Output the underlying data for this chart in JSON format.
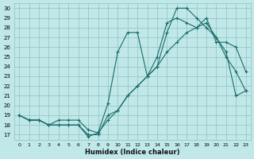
{
  "xlabel": "Humidex (Indice chaleur)",
  "bg_color": "#c0e8e8",
  "grid_color": "#90c0c0",
  "line_color": "#1a6b6b",
  "xlim": [
    -0.5,
    23.5
  ],
  "ylim": [
    16.5,
    30.5
  ],
  "xticks": [
    0,
    1,
    2,
    3,
    4,
    5,
    6,
    7,
    8,
    9,
    10,
    11,
    12,
    13,
    14,
    15,
    16,
    17,
    18,
    19,
    20,
    21,
    22,
    23
  ],
  "yticks": [
    17,
    18,
    19,
    20,
    21,
    22,
    23,
    24,
    25,
    26,
    27,
    28,
    29,
    30
  ],
  "series1_x": [
    0,
    1,
    2,
    3,
    4,
    5,
    6,
    7,
    8,
    9,
    10,
    11,
    12,
    13,
    14,
    15,
    16,
    17,
    18,
    19,
    20,
    21,
    22,
    23
  ],
  "series1_y": [
    19,
    18.5,
    18.5,
    18,
    18,
    18,
    18,
    16.8,
    17.2,
    20.2,
    25.5,
    27.5,
    27.5,
    23,
    25,
    28.5,
    29,
    28.5,
    28,
    29,
    26.5,
    26.5,
    26,
    23.5
  ],
  "series2_x": [
    0,
    1,
    2,
    3,
    4,
    5,
    6,
    7,
    8,
    9,
    10,
    11,
    12,
    13,
    14,
    15,
    16,
    17,
    18,
    19,
    20,
    21,
    22,
    23
  ],
  "series2_y": [
    19,
    18.5,
    18.5,
    18,
    18.5,
    18.5,
    18.5,
    17.5,
    17.2,
    18.5,
    19.5,
    21,
    22,
    23,
    24,
    25.5,
    26.5,
    27.5,
    28,
    28.5,
    27,
    25,
    23.5,
    21.5
  ],
  "series3_x": [
    0,
    1,
    2,
    3,
    4,
    5,
    6,
    7,
    8,
    9,
    10,
    11,
    12,
    13,
    14,
    15,
    16,
    17,
    18,
    19,
    20,
    21,
    22,
    23
  ],
  "series3_y": [
    19,
    18.5,
    18.5,
    18,
    18,
    18,
    18,
    17,
    17,
    19,
    19.5,
    21,
    22,
    23,
    24,
    27.5,
    30,
    30,
    29,
    28,
    27,
    25.5,
    21,
    21.5
  ]
}
